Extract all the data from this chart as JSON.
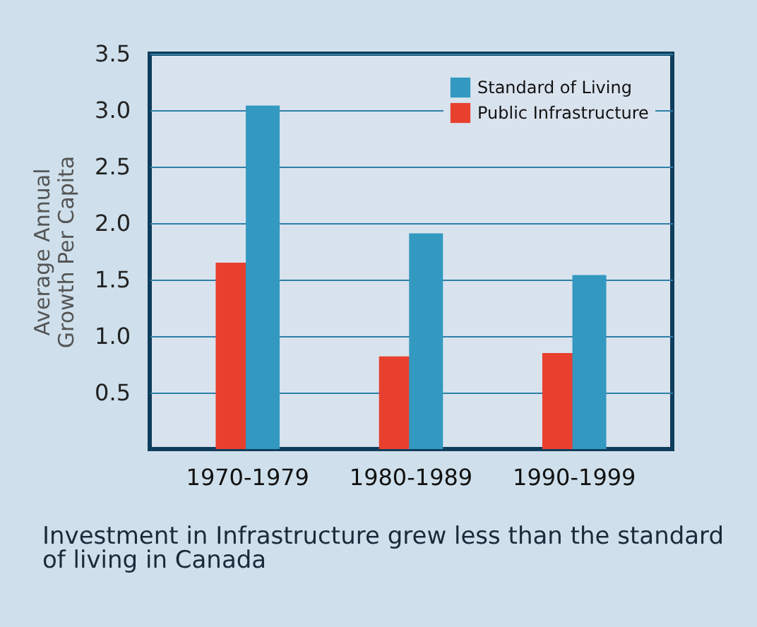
{
  "chart_data": {
    "type": "bar",
    "ylabel": "Average Annual\nGrowth Per Capita",
    "categories": [
      "1970-1979",
      "1980-1989",
      "1990-1999"
    ],
    "series": [
      {
        "name": "Public Infrastructure",
        "color": "#e8402f",
        "values": [
          1.65,
          0.82,
          0.85
        ]
      },
      {
        "name": "Standard of Living",
        "color": "#3399c0",
        "values": [
          3.04,
          1.91,
          1.54
        ]
      }
    ],
    "ylim": [
      0,
      3.5
    ],
    "yticks": [
      0.5,
      {
        "value": 1,
        "label": "1.0"
      },
      1.5,
      {
        "value": 2,
        "label": "2.0"
      },
      2.5,
      {
        "value": 3,
        "label": "3.0"
      },
      3.5
    ],
    "grid": "y",
    "legend": "top right",
    "annotations": [
      "Investment in Infrastructure grew less than the standard of living in Canada"
    ]
  }
}
